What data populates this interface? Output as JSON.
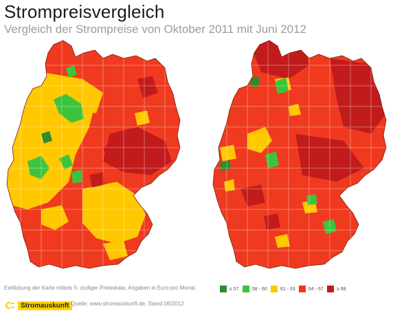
{
  "title": "Strompreisvergleich",
  "subtitle": "Vergleich der Strompreise von Oktober 2011 mit Juni 2012",
  "legend": {
    "description": "Einfärbung der Karte mittels 5- stufiger Preisskala, Angaben in Euro pro Monat.",
    "items": [
      {
        "label": "≤ 57",
        "color": "#2e8b2e"
      },
      {
        "label": "58 - 60",
        "color": "#3cc43c"
      },
      {
        "label": "61 - 63",
        "color": "#ffc800"
      },
      {
        "label": "64 - 67",
        "color": "#ef3a1f"
      },
      {
        "label": "≥ 68",
        "color": "#c21b1b"
      }
    ]
  },
  "footer": {
    "logo_text": "Stromauskunft",
    "source": "Quelle: www.stromauskunft.de, Stand 06/2012"
  }
}
